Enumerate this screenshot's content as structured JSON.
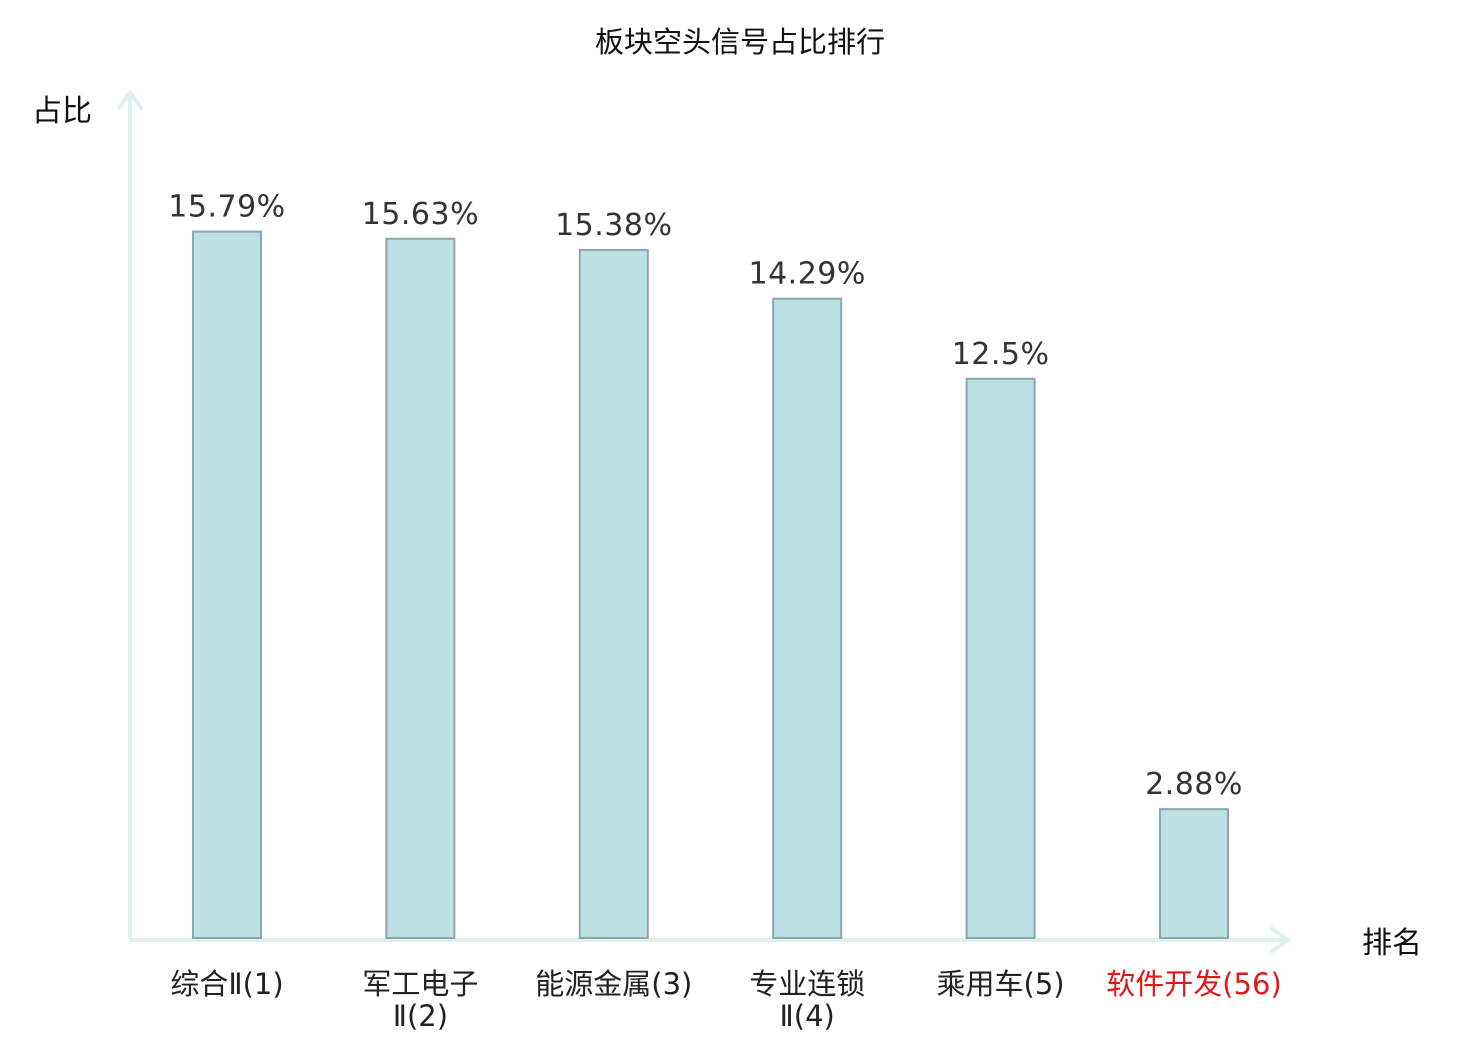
{
  "chart_data": {
    "type": "bar",
    "title": "板块空头信号占比排行",
    "ylabel": "占比",
    "xlabel": "排名",
    "ylim": [
      0,
      19
    ],
    "grid": false,
    "categories": [
      {
        "lines": [
          "综合Ⅱ(1)"
        ],
        "highlight": false
      },
      {
        "lines": [
          "军工电子",
          "Ⅱ(2)"
        ],
        "highlight": false
      },
      {
        "lines": [
          "能源金属(3)"
        ],
        "highlight": false
      },
      {
        "lines": [
          "专业连锁",
          "Ⅱ(4)"
        ],
        "highlight": false
      },
      {
        "lines": [
          "乘用车(5)"
        ],
        "highlight": false
      },
      {
        "lines": [
          "软件开发(56)"
        ],
        "highlight": true
      }
    ],
    "values": [
      15.79,
      15.63,
      15.38,
      14.29,
      12.5,
      2.88
    ],
    "value_labels": [
      "15.79%",
      "15.63%",
      "15.38%",
      "14.29%",
      "12.5%",
      "2.88%"
    ]
  },
  "colors": {
    "bar_fill": "#bce0e3",
    "bar_stroke": "#8aa8aa",
    "axis": "#dff0ee",
    "highlight_label": "#e01818"
  }
}
